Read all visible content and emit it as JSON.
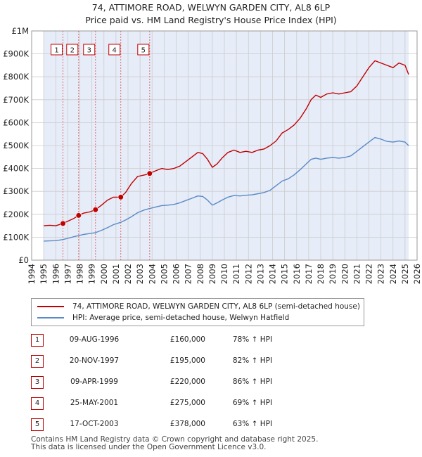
{
  "title_line1": "74, ATTIMORE ROAD, WELWYN GARDEN CITY, AL8 6LP",
  "title_line2": "Price paid vs. HM Land Registry's House Price Index (HPI)",
  "colors": {
    "red": "#c00000",
    "blue": "#5a8ac6",
    "shade": "#e6ecf8",
    "grid": "#cccccc"
  },
  "chart_data": {
    "type": "line",
    "x_range": [
      1994,
      2026
    ],
    "y_range": [
      0,
      1000000
    ],
    "y_ticks": [
      {
        "value": 0,
        "label": "£0"
      },
      {
        "value": 100000,
        "label": "£100K"
      },
      {
        "value": 200000,
        "label": "£200K"
      },
      {
        "value": 300000,
        "label": "£300K"
      },
      {
        "value": 400000,
        "label": "£400K"
      },
      {
        "value": 500000,
        "label": "£500K"
      },
      {
        "value": 600000,
        "label": "£600K"
      },
      {
        "value": 700000,
        "label": "£700K"
      },
      {
        "value": 800000,
        "label": "£800K"
      },
      {
        "value": 900000,
        "label": "£900K"
      },
      {
        "value": 1000000,
        "label": "£1M"
      }
    ],
    "x_ticks": [
      "1994",
      "1995",
      "1996",
      "1997",
      "1998",
      "1999",
      "2000",
      "2001",
      "2002",
      "2003",
      "2004",
      "2005",
      "2006",
      "2007",
      "2008",
      "2009",
      "2010",
      "2011",
      "2012",
      "2013",
      "2014",
      "2015",
      "2016",
      "2017",
      "2018",
      "2019",
      "2020",
      "2021",
      "2022",
      "2023",
      "2024",
      "2025",
      "2026"
    ],
    "shaded_from": 1995,
    "shaded_to": 2025.3,
    "series": [
      {
        "name": "74, ATTIMORE ROAD, WELWYN GARDEN CITY, AL8 6LP (semi-detached house)",
        "color": "#c00000",
        "points": [
          [
            1995.0,
            150000
          ],
          [
            1995.5,
            152000
          ],
          [
            1996.0,
            150000
          ],
          [
            1996.6,
            160000
          ],
          [
            1997.0,
            170000
          ],
          [
            1997.5,
            182000
          ],
          [
            1997.9,
            195000
          ],
          [
            1998.3,
            205000
          ],
          [
            1998.8,
            210000
          ],
          [
            1999.3,
            220000
          ],
          [
            1999.8,
            240000
          ],
          [
            2000.3,
            262000
          ],
          [
            2000.8,
            275000
          ],
          [
            2001.4,
            275000
          ],
          [
            2001.8,
            295000
          ],
          [
            2002.3,
            335000
          ],
          [
            2002.8,
            365000
          ],
          [
            2003.4,
            372000
          ],
          [
            2003.8,
            378000
          ],
          [
            2004.3,
            390000
          ],
          [
            2004.8,
            400000
          ],
          [
            2005.3,
            395000
          ],
          [
            2005.8,
            400000
          ],
          [
            2006.3,
            410000
          ],
          [
            2006.8,
            430000
          ],
          [
            2007.3,
            450000
          ],
          [
            2007.8,
            470000
          ],
          [
            2008.2,
            465000
          ],
          [
            2008.6,
            440000
          ],
          [
            2009.0,
            405000
          ],
          [
            2009.4,
            420000
          ],
          [
            2009.8,
            445000
          ],
          [
            2010.3,
            470000
          ],
          [
            2010.8,
            480000
          ],
          [
            2011.3,
            470000
          ],
          [
            2011.8,
            475000
          ],
          [
            2012.3,
            470000
          ],
          [
            2012.8,
            480000
          ],
          [
            2013.3,
            485000
          ],
          [
            2013.8,
            500000
          ],
          [
            2014.3,
            520000
          ],
          [
            2014.8,
            555000
          ],
          [
            2015.3,
            570000
          ],
          [
            2015.8,
            590000
          ],
          [
            2016.3,
            620000
          ],
          [
            2016.8,
            660000
          ],
          [
            2017.2,
            700000
          ],
          [
            2017.6,
            720000
          ],
          [
            2018.0,
            710000
          ],
          [
            2018.5,
            725000
          ],
          [
            2019.0,
            730000
          ],
          [
            2019.5,
            725000
          ],
          [
            2020.0,
            730000
          ],
          [
            2020.5,
            735000
          ],
          [
            2021.0,
            760000
          ],
          [
            2021.5,
            800000
          ],
          [
            2022.0,
            840000
          ],
          [
            2022.5,
            870000
          ],
          [
            2023.0,
            860000
          ],
          [
            2023.5,
            850000
          ],
          [
            2024.0,
            840000
          ],
          [
            2024.5,
            860000
          ],
          [
            2025.0,
            850000
          ],
          [
            2025.3,
            810000
          ]
        ]
      },
      {
        "name": "HPI: Average price, semi-detached house, Welwyn Hatfield",
        "color": "#5a8ac6",
        "points": [
          [
            1995.0,
            83000
          ],
          [
            1995.5,
            84000
          ],
          [
            1996.0,
            85000
          ],
          [
            1996.6,
            90000
          ],
          [
            1997.0,
            95000
          ],
          [
            1997.5,
            102000
          ],
          [
            1997.9,
            107000
          ],
          [
            1998.3,
            112000
          ],
          [
            1998.8,
            116000
          ],
          [
            1999.3,
            120000
          ],
          [
            1999.8,
            130000
          ],
          [
            2000.3,
            142000
          ],
          [
            2000.8,
            155000
          ],
          [
            2001.4,
            165000
          ],
          [
            2001.8,
            175000
          ],
          [
            2002.3,
            190000
          ],
          [
            2002.8,
            207000
          ],
          [
            2003.4,
            220000
          ],
          [
            2003.8,
            225000
          ],
          [
            2004.3,
            232000
          ],
          [
            2004.8,
            238000
          ],
          [
            2005.3,
            240000
          ],
          [
            2005.8,
            243000
          ],
          [
            2006.3,
            250000
          ],
          [
            2006.8,
            260000
          ],
          [
            2007.3,
            270000
          ],
          [
            2007.8,
            280000
          ],
          [
            2008.2,
            278000
          ],
          [
            2008.6,
            262000
          ],
          [
            2009.0,
            240000
          ],
          [
            2009.4,
            250000
          ],
          [
            2009.8,
            262000
          ],
          [
            2010.3,
            275000
          ],
          [
            2010.8,
            282000
          ],
          [
            2011.3,
            280000
          ],
          [
            2011.8,
            283000
          ],
          [
            2012.3,
            285000
          ],
          [
            2012.8,
            290000
          ],
          [
            2013.3,
            295000
          ],
          [
            2013.8,
            305000
          ],
          [
            2014.3,
            325000
          ],
          [
            2014.8,
            345000
          ],
          [
            2015.3,
            355000
          ],
          [
            2015.8,
            372000
          ],
          [
            2016.3,
            395000
          ],
          [
            2016.8,
            420000
          ],
          [
            2017.2,
            440000
          ],
          [
            2017.6,
            445000
          ],
          [
            2018.0,
            440000
          ],
          [
            2018.5,
            445000
          ],
          [
            2019.0,
            448000
          ],
          [
            2019.5,
            445000
          ],
          [
            2020.0,
            448000
          ],
          [
            2020.5,
            455000
          ],
          [
            2021.0,
            475000
          ],
          [
            2021.5,
            495000
          ],
          [
            2022.0,
            515000
          ],
          [
            2022.5,
            535000
          ],
          [
            2023.0,
            528000
          ],
          [
            2023.5,
            518000
          ],
          [
            2024.0,
            515000
          ],
          [
            2024.5,
            520000
          ],
          [
            2025.0,
            515000
          ],
          [
            2025.3,
            500000
          ]
        ]
      }
    ],
    "transactions": [
      {
        "id": "1",
        "x": 1996.6,
        "price": 160000
      },
      {
        "id": "2",
        "x": 1997.9,
        "price": 195000
      },
      {
        "id": "3",
        "x": 1999.3,
        "price": 220000
      },
      {
        "id": "4",
        "x": 2001.4,
        "price": 275000
      },
      {
        "id": "5",
        "x": 2003.8,
        "price": 378000
      }
    ]
  },
  "legend": {
    "red_label": "74, ATTIMORE ROAD, WELWYN GARDEN CITY, AL8 6LP (semi-detached house)",
    "blue_label": "HPI: Average price, semi-detached house, Welwyn Hatfield"
  },
  "table": [
    {
      "num": "1",
      "date": "09-AUG-1996",
      "price": "£160,000",
      "hpi": "78% ↑ HPI"
    },
    {
      "num": "2",
      "date": "20-NOV-1997",
      "price": "£195,000",
      "hpi": "82% ↑ HPI"
    },
    {
      "num": "3",
      "date": "09-APR-1999",
      "price": "£220,000",
      "hpi": "86% ↑ HPI"
    },
    {
      "num": "4",
      "date": "25-MAY-2001",
      "price": "£275,000",
      "hpi": "69% ↑ HPI"
    },
    {
      "num": "5",
      "date": "17-OCT-2003",
      "price": "£378,000",
      "hpi": "63% ↑ HPI"
    }
  ],
  "footer_line1": "Contains HM Land Registry data © Crown copyright and database right 2025.",
  "footer_line2": "This data is licensed under the Open Government Licence v3.0."
}
